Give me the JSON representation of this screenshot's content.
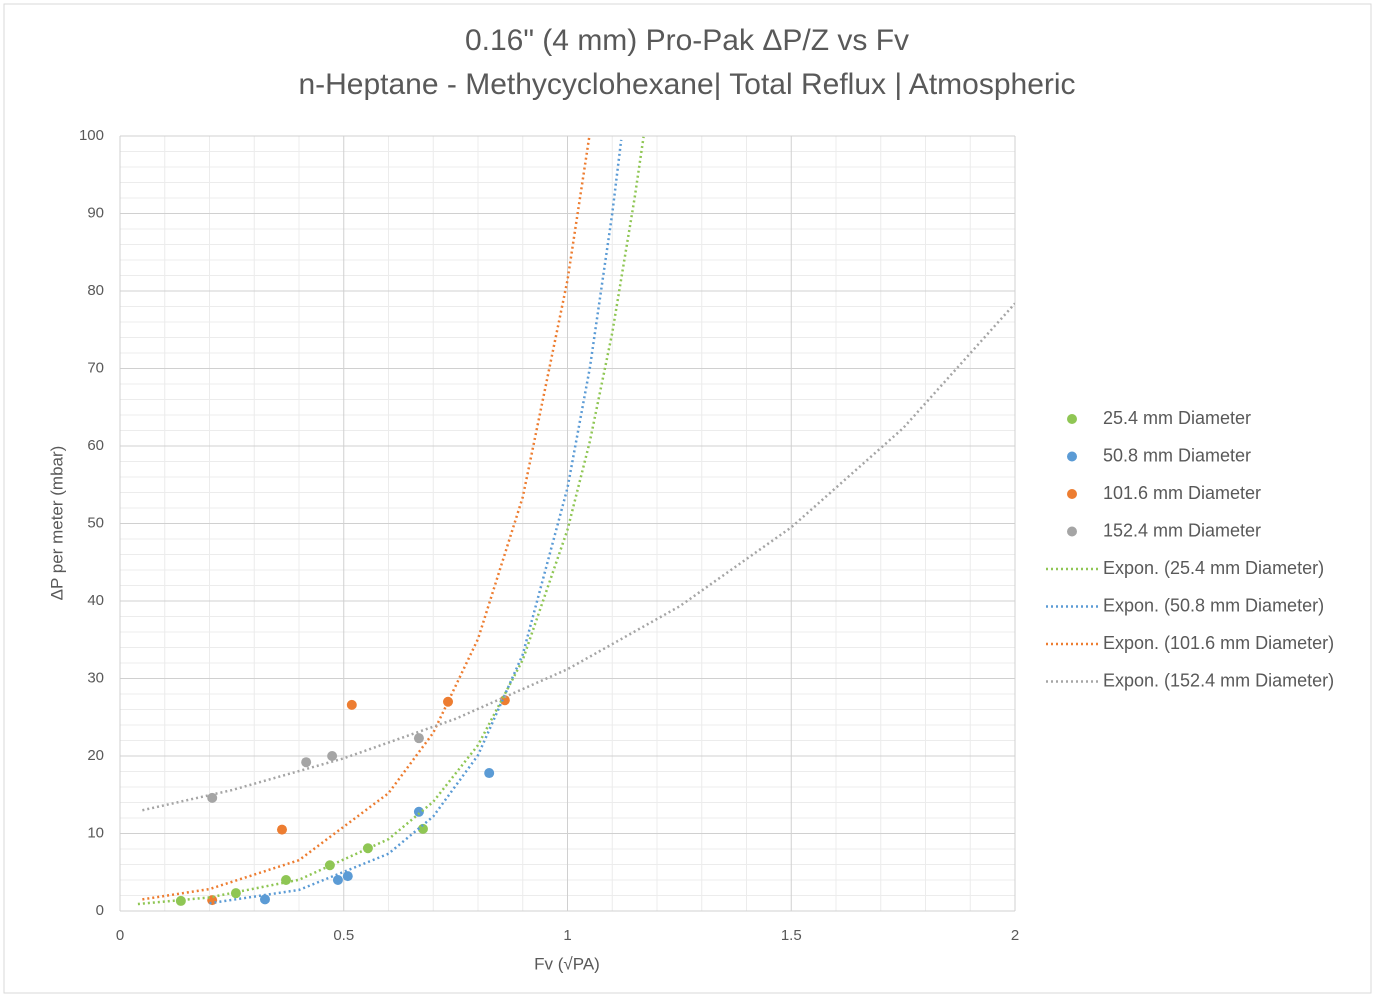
{
  "chart_data": {
    "type": "scatter",
    "title": "0.16\" (4 mm) Pro-Pak ΔP/Z vs Fv",
    "subtitle": "n-Heptane - Methycyclohexane| Total Reflux | Atmospheric",
    "x_label": "Fv (√PA)",
    "y_label": "ΔP per meter (mbar)",
    "xlim": [
      0,
      2
    ],
    "ylim": [
      0,
      100
    ],
    "xticks": [
      0,
      0.5,
      1,
      1.5,
      2
    ],
    "yticks": [
      0,
      10,
      20,
      30,
      40,
      50,
      60,
      70,
      80,
      90,
      100
    ],
    "xminorticks": [
      0.1,
      0.2,
      0.3,
      0.4,
      0.6,
      0.7,
      0.8,
      0.9,
      1.1,
      1.2,
      1.3,
      1.4,
      1.6,
      1.7,
      1.8,
      1.9
    ],
    "yminorticks": [
      2,
      4,
      6,
      8,
      12,
      14,
      16,
      18,
      22,
      24,
      26,
      28,
      32,
      34,
      36,
      38,
      42,
      44,
      46,
      48,
      52,
      54,
      56,
      58,
      62,
      64,
      66,
      68,
      72,
      74,
      76,
      78,
      82,
      84,
      86,
      88,
      92,
      94,
      96,
      98
    ],
    "grid": true,
    "legend": "right",
    "series": [
      {
        "name": "25.4 mm Diameter",
        "color": "#8fc654",
        "style": "markers",
        "x": [
          0.136,
          0.259,
          0.371,
          0.469,
          0.554,
          0.677
        ],
        "values": [
          1.3,
          2.3,
          4.0,
          5.9,
          8.1,
          10.6
        ]
      },
      {
        "name": "50.8 mm Diameter",
        "color": "#5b9bd5",
        "style": "markers",
        "x": [
          0.324,
          0.487,
          0.509,
          0.668,
          0.825
        ],
        "values": [
          1.5,
          4.0,
          4.5,
          12.8,
          17.8
        ]
      },
      {
        "name": "101.6 mm Diameter",
        "color": "#ed7d31",
        "style": "markers",
        "x": [
          0.206,
          0.362,
          0.518,
          0.733,
          0.86
        ],
        "values": [
          1.4,
          10.5,
          26.6,
          27.0,
          27.2
        ]
      },
      {
        "name": "152.4 mm Diameter",
        "color": "#a5a5a5",
        "style": "markers",
        "x": [
          0.206,
          0.416,
          0.474,
          0.668
        ],
        "values": [
          14.6,
          19.2,
          20.0,
          22.3
        ]
      },
      {
        "name": "Expon. (25.4 mm Diameter)",
        "color": "#8fc654",
        "style": "dotted-line",
        "x": [
          0.04,
          0.2,
          0.4,
          0.6,
          0.7,
          0.8,
          0.9,
          1.0,
          1.05,
          1.1,
          1.15,
          1.17
        ],
        "values": [
          0.9,
          1.75,
          4.03,
          9.27,
          14.1,
          21.4,
          32.4,
          49.2,
          60.6,
          74.6,
          92.0,
          99.9
        ]
      },
      {
        "name": "Expon. (50.8 mm Diameter)",
        "color": "#5b9bd5",
        "style": "dotted-line",
        "x": [
          0.2,
          0.4,
          0.6,
          0.7,
          0.8,
          0.9,
          1.0,
          1.05,
          1.1,
          1.12
        ],
        "values": [
          1.0,
          2.72,
          7.39,
          12.2,
          20.1,
          33.1,
          54.6,
          70.1,
          90.0,
          99.5
        ]
      },
      {
        "name": "Expon. (101.6 mm Diameter)",
        "color": "#ed7d31",
        "style": "dotted-line",
        "x": [
          0.05,
          0.2,
          0.4,
          0.6,
          0.7,
          0.8,
          0.9,
          1.0,
          1.05
        ],
        "values": [
          1.5,
          2.83,
          6.56,
          15.2,
          23.0,
          35.1,
          53.4,
          81.4,
          100.4
        ]
      },
      {
        "name": "Expon. (152.4 mm Diameter)",
        "color": "#a5a5a5",
        "style": "dotted-line",
        "x": [
          0.05,
          0.25,
          0.5,
          0.75,
          1.0,
          1.25,
          1.5,
          1.75,
          2.0
        ],
        "values": [
          13.0,
          15.6,
          19.7,
          24.8,
          31.2,
          39.3,
          49.5,
          62.3,
          78.4
        ]
      }
    ]
  }
}
